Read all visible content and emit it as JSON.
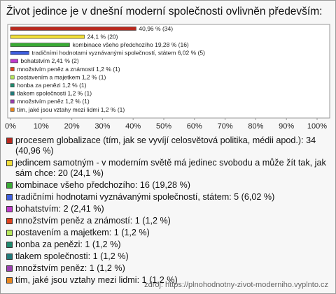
{
  "chart_data": {
    "type": "bar",
    "orientation": "horizontal",
    "title": "Život jedince je v dnešní moderní společnosti ovlivněn především:",
    "values": [
      40.96,
      24.1,
      19.28,
      6.02,
      2.41,
      1.2,
      1.2,
      1.2,
      1.2,
      1.2,
      1.2
    ],
    "value_labels": [
      "40,96 % (34)",
      "24,1 % (20)",
      "kombinace všeho předchozího 19,28 % (16)",
      "tradičními hodnotami vyznávanými společností, státem 6,02 % (5)",
      "bohatstvím 2,41 % (2)",
      "množstvím peněz a známostí 1,2 % (1)",
      "postavením a majetkem 1,2 % (1)",
      "honba za penězi 1,2 % (1)",
      "tlakem společnosti 1,2 % (1)",
      "množstvím peněz 1,2 % (1)",
      "tím, jaké jsou vztahy mezi lidmi 1,2 % (1)"
    ],
    "colors": [
      "#b8281e",
      "#f2e03a",
      "#3aaa35",
      "#3f5fe0",
      "#c03ccc",
      "#e0431e",
      "#b6e85a",
      "#1f8a6e",
      "#207a7a",
      "#9a3fb0",
      "#e8861e"
    ],
    "legend": [
      "procesem globalizace (tím, jak se vyvíjí celosvětová politika, médii apod.): 34 (40,96 %)",
      "jedincem samotným - v moderním světě má jedinec svobodu a může žít tak, jak sám chce: 20 (24,1 %)",
      "kombinace všeho předchozího: 16 (19,28 %)",
      "tradičními hodnotami vyznávanými společností, státem: 5 (6,02 %)",
      "bohatstvím: 2 (2,41 %)",
      "množstvím peněz a známostí: 1 (1,2 %)",
      "postavením a majetkem: 1 (1,2 %)",
      "honba za penězi: 1 (1,2 %)",
      "tlakem společnosti: 1 (1,2 %)",
      "množstvím peněz: 1 (1,2 %)",
      "tím, jaké jsou vztahy mezi lidmi: 1 (1,2 %)"
    ],
    "xlim": [
      0,
      100
    ],
    "xticks": [
      {
        "value": 0,
        "label": "0%"
      },
      {
        "value": 10,
        "label": "10%"
      },
      {
        "value": 20,
        "label": "20%"
      },
      {
        "value": 30,
        "label": "30%"
      },
      {
        "value": 40,
        "label": "40%"
      },
      {
        "value": 50,
        "label": "50%"
      },
      {
        "value": 60,
        "label": "60%"
      },
      {
        "value": 70,
        "label": "70%"
      },
      {
        "value": 80,
        "label": "80%"
      },
      {
        "value": 90,
        "label": "90%"
      },
      {
        "value": 100,
        "label": "100%"
      }
    ],
    "source": "zdroj: https://plnohodnotny-zivot-moderniho.vyplnto.cz"
  }
}
